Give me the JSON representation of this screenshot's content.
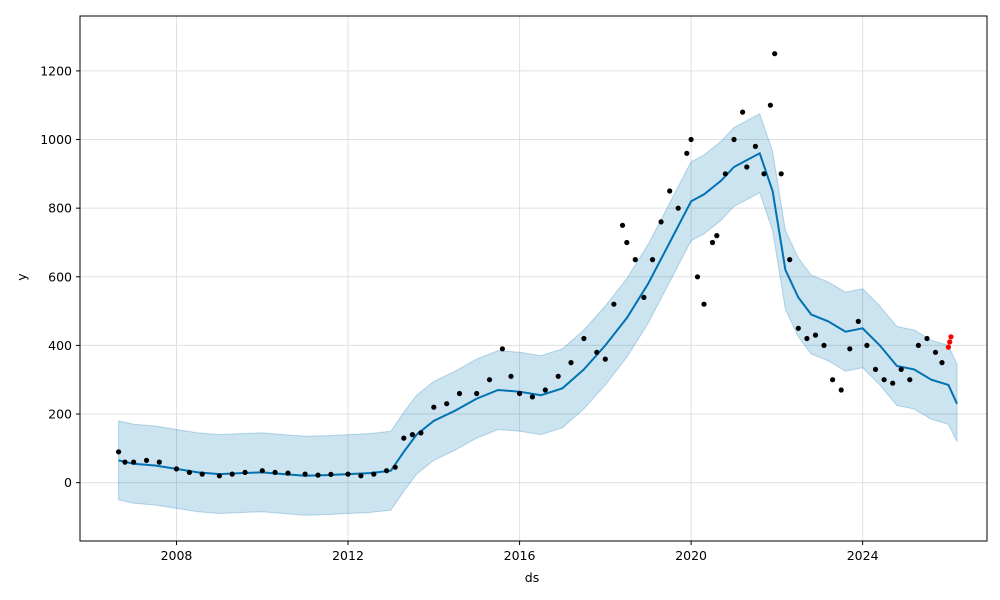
{
  "chart_data": {
    "type": "line",
    "title": "",
    "xlabel": "ds",
    "ylabel": "y",
    "xlim": [
      2005.75,
      2026.9
    ],
    "ylim": [
      -170,
      1360
    ],
    "grid": true,
    "legend": "none",
    "x_ticks": [
      2008,
      2012,
      2016,
      2020,
      2024
    ],
    "x_tick_labels": [
      "2008",
      "2012",
      "2016",
      "2020",
      "2024"
    ],
    "y_ticks": [
      0,
      200,
      400,
      600,
      800,
      1000,
      1200
    ],
    "y_tick_labels": [
      "0",
      "200",
      "400",
      "600",
      "800",
      "1000",
      "1200"
    ],
    "colors": {
      "forecast_line": "#0072B2",
      "interval_fill": "#0072B2",
      "observed": "#000000",
      "recent_observed": "#ff0000",
      "grid": "#e0e0e0"
    },
    "series": [
      {
        "role": "forecast",
        "x": [
          2006.65,
          2007.0,
          2007.5,
          2008.0,
          2008.5,
          2009.0,
          2009.5,
          2010.0,
          2010.5,
          2011.0,
          2011.5,
          2012.0,
          2012.5,
          2013.0,
          2013.3,
          2013.6,
          2014.0,
          2014.5,
          2015.0,
          2015.5,
          2016.0,
          2016.5,
          2017.0,
          2017.5,
          2018.0,
          2018.5,
          2019.0,
          2019.5,
          2020.0,
          2020.3,
          2020.7,
          2021.0,
          2021.3,
          2021.6,
          2021.9,
          2022.2,
          2022.5,
          2022.8,
          2023.2,
          2023.6,
          2024.0,
          2024.4,
          2024.8,
          2025.2,
          2025.6,
          2026.0,
          2026.2
        ],
        "y": [
          65,
          55,
          50,
          40,
          30,
          25,
          28,
          30,
          25,
          20,
          22,
          25,
          28,
          35,
          90,
          140,
          180,
          210,
          245,
          270,
          265,
          255,
          275,
          330,
          400,
          480,
          580,
          700,
          820,
          840,
          880,
          920,
          940,
          960,
          850,
          620,
          540,
          490,
          470,
          440,
          450,
          400,
          340,
          330,
          300,
          285,
          230
        ]
      },
      {
        "role": "uncertainty_interval",
        "x": [
          2006.65,
          2007.0,
          2007.5,
          2008.0,
          2008.5,
          2009.0,
          2009.5,
          2010.0,
          2010.5,
          2011.0,
          2011.5,
          2012.0,
          2012.5,
          2013.0,
          2013.3,
          2013.6,
          2014.0,
          2014.5,
          2015.0,
          2015.5,
          2016.0,
          2016.5,
          2017.0,
          2017.5,
          2018.0,
          2018.5,
          2019.0,
          2019.5,
          2020.0,
          2020.3,
          2020.7,
          2021.0,
          2021.3,
          2021.6,
          2021.9,
          2022.2,
          2022.5,
          2022.8,
          2023.2,
          2023.6,
          2024.0,
          2024.4,
          2024.8,
          2025.2,
          2025.6,
          2026.0,
          2026.2
        ],
        "lower": [
          -50,
          -60,
          -65,
          -75,
          -85,
          -90,
          -87,
          -85,
          -90,
          -95,
          -93,
          -90,
          -87,
          -80,
          -25,
          25,
          65,
          95,
          130,
          155,
          150,
          140,
          160,
          215,
          285,
          365,
          465,
          585,
          705,
          725,
          765,
          805,
          825,
          845,
          735,
          505,
          425,
          375,
          355,
          325,
          335,
          285,
          225,
          215,
          185,
          170,
          120
        ],
        "upper": [
          180,
          170,
          165,
          155,
          145,
          140,
          143,
          145,
          140,
          135,
          137,
          140,
          143,
          150,
          205,
          255,
          295,
          325,
          360,
          385,
          380,
          370,
          390,
          445,
          515,
          595,
          695,
          815,
          935,
          955,
          995,
          1035,
          1055,
          1075,
          965,
          735,
          655,
          605,
          585,
          555,
          565,
          515,
          455,
          445,
          415,
          400,
          345
        ]
      },
      {
        "role": "observed",
        "x": [
          2006.65,
          2006.8,
          2007.0,
          2007.3,
          2007.6,
          2008.0,
          2008.3,
          2008.6,
          2009.0,
          2009.3,
          2009.6,
          2010.0,
          2010.3,
          2010.6,
          2011.0,
          2011.3,
          2011.6,
          2012.0,
          2012.3,
          2012.6,
          2012.9,
          2013.1,
          2013.3,
          2013.5,
          2013.7,
          2014.0,
          2014.3,
          2014.6,
          2015.0,
          2015.3,
          2015.6,
          2015.8,
          2016.0,
          2016.3,
          2016.6,
          2016.9,
          2017.2,
          2017.5,
          2017.8,
          2018.0,
          2018.2,
          2018.4,
          2018.5,
          2018.7,
          2018.9,
          2019.1,
          2019.3,
          2019.5,
          2019.7,
          2019.9,
          2020.0,
          2020.15,
          2020.3,
          2020.5,
          2020.6,
          2020.8,
          2021.0,
          2021.2,
          2021.3,
          2021.5,
          2021.7,
          2021.85,
          2021.95,
          2022.1,
          2022.3,
          2022.5,
          2022.7,
          2022.9,
          2023.1,
          2023.3,
          2023.5,
          2023.7,
          2023.9,
          2024.1,
          2024.3,
          2024.5,
          2024.7,
          2024.9,
          2025.1,
          2025.3,
          2025.5,
          2025.7,
          2025.85
        ],
        "y": [
          90,
          60,
          60,
          65,
          60,
          40,
          30,
          25,
          20,
          25,
          30,
          35,
          30,
          28,
          25,
          22,
          24,
          25,
          20,
          25,
          35,
          45,
          130,
          140,
          145,
          220,
          230,
          260,
          260,
          300,
          390,
          310,
          260,
          250,
          270,
          310,
          350,
          420,
          380,
          360,
          520,
          750,
          700,
          650,
          540,
          650,
          760,
          850,
          800,
          960,
          1000,
          600,
          520,
          700,
          720,
          900,
          1000,
          1080,
          920,
          980,
          900,
          1100,
          1250,
          900,
          650,
          450,
          420,
          430,
          400,
          300,
          270,
          390,
          470,
          400,
          330,
          300,
          290,
          330,
          300,
          400,
          420,
          380,
          350
        ]
      },
      {
        "role": "observed_recent",
        "x": [
          2026.0,
          2026.03,
          2026.06
        ],
        "y": [
          395,
          410,
          425
        ]
      }
    ]
  }
}
